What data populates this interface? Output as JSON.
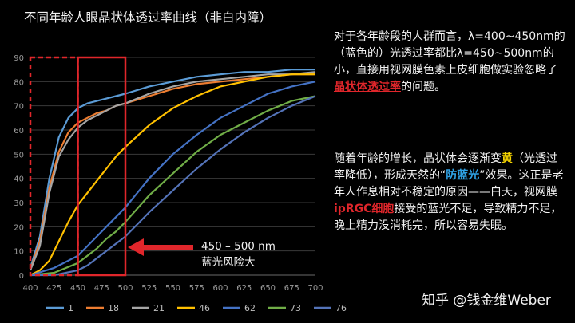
{
  "chart_data": {
    "type": "line",
    "title": "不同年龄人眼晶状体透过率曲线（非白内障）",
    "xlabel": "",
    "ylabel": "",
    "xlim": [
      400,
      700
    ],
    "ylim": [
      0,
      90
    ],
    "x_ticks": [
      "400",
      "425",
      "450",
      "475",
      "500",
      "525",
      "550",
      "575",
      "600",
      "625",
      "650",
      "675",
      "700"
    ],
    "y_ticks": [
      "0",
      "10",
      "20",
      "30",
      "40",
      "50",
      "60",
      "70",
      "80",
      "90"
    ],
    "grid": true,
    "legend_position": "bottom",
    "series": [
      {
        "name": "1",
        "color": "#5b9bd5",
        "x": [
          400,
          410,
          420,
          430,
          440,
          450,
          460,
          470,
          480,
          490,
          500,
          525,
          550,
          575,
          600,
          625,
          650,
          675,
          700
        ],
        "y": [
          3,
          16,
          40,
          57,
          65,
          69,
          71,
          72,
          73,
          74,
          75,
          78,
          80,
          82,
          83,
          84,
          84,
          85,
          85
        ]
      },
      {
        "name": "18",
        "color": "#ed7d31",
        "x": [
          400,
          410,
          420,
          430,
          440,
          450,
          460,
          470,
          480,
          490,
          500,
          525,
          550,
          575,
          600,
          625,
          650,
          675,
          700
        ],
        "y": [
          2,
          14,
          36,
          51,
          59,
          63,
          65,
          67,
          68,
          70,
          71,
          74,
          77,
          79,
          80,
          81,
          82,
          83,
          83
        ]
      },
      {
        "name": "21",
        "color": "#a5a5a5",
        "x": [
          400,
          410,
          420,
          430,
          440,
          450,
          460,
          470,
          480,
          490,
          500,
          525,
          550,
          575,
          600,
          625,
          650,
          675,
          700
        ],
        "y": [
          2,
          12,
          34,
          49,
          56,
          61,
          64,
          66,
          68,
          70,
          71,
          75,
          78,
          80,
          81,
          82,
          83,
          83,
          84
        ]
      },
      {
        "name": "46",
        "color": "#ffc000",
        "x": [
          400,
          410,
          420,
          430,
          440,
          450,
          460,
          470,
          480,
          490,
          500,
          525,
          550,
          575,
          600,
          625,
          650,
          675,
          700
        ],
        "y": [
          0,
          2,
          6,
          14,
          22,
          29,
          34,
          39,
          44,
          49,
          53,
          62,
          69,
          74,
          78,
          80,
          82,
          83,
          83
        ]
      },
      {
        "name": "62",
        "color": "#4472c4",
        "x": [
          400,
          425,
          450,
          460,
          470,
          480,
          490,
          500,
          525,
          550,
          575,
          600,
          625,
          650,
          675,
          700
        ],
        "y": [
          0,
          3,
          8,
          12,
          16,
          20,
          24,
          28,
          40,
          50,
          58,
          65,
          70,
          75,
          78,
          80
        ]
      },
      {
        "name": "73",
        "color": "#70ad47",
        "x": [
          400,
          425,
          450,
          460,
          470,
          480,
          490,
          500,
          525,
          550,
          575,
          600,
          625,
          650,
          675,
          700
        ],
        "y": [
          0,
          1,
          5,
          8,
          11,
          15,
          18,
          22,
          33,
          42,
          51,
          58,
          63,
          68,
          72,
          74
        ]
      },
      {
        "name": "76",
        "color": "#5473b8",
        "x": [
          400,
          425,
          450,
          460,
          470,
          480,
          490,
          500,
          525,
          550,
          575,
          600,
          625,
          650,
          675,
          700
        ],
        "y": [
          0,
          0,
          2,
          4,
          7,
          10,
          13,
          16,
          26,
          35,
          44,
          52,
          59,
          65,
          70,
          74
        ]
      }
    ],
    "annotations": {
      "box1_range": [
        400,
        450
      ],
      "box2_range": [
        450,
        500
      ],
      "callout_line1": "450 – 500 nm",
      "callout_line2": "蓝光风险大"
    }
  },
  "text": {
    "p1": "对于各年龄段的人群而言，λ=400~450nm的（蓝色的）光透过率都比λ=450~500nm的小，直接用视网膜色素上皮细胞做实验忽略了",
    "p1_hl": "晶状体透过率",
    "p1_tail": "的问题。",
    "p2a": "随着年龄的增长，晶状体会逐渐变",
    "p2_yellow": "黄",
    "p2b": "（光透过率降低），形成天然的“",
    "p2_blue": "防蓝光",
    "p2c": "”效果。这正是老年人作息相对不稳定的原因——白天，视网膜",
    "p2_red": "ipRGC细胞",
    "p2d": "接受的蓝光不足，导致精力不足，晚上精力没消耗完，所以容易失眠。"
  },
  "watermark": "知乎 @钱金维Weber",
  "colors": {
    "background": "#000000",
    "grid": "#3a3a3a",
    "dashed_box": "#e0262b",
    "arrow": "#e0262b"
  }
}
